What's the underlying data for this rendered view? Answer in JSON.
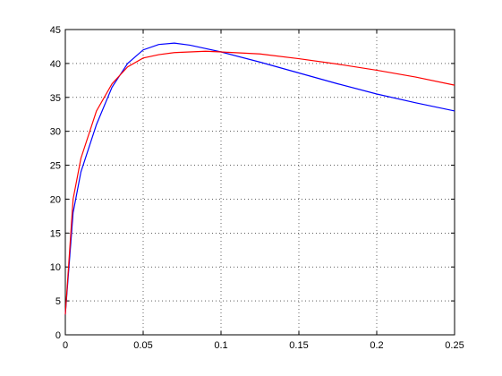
{
  "chart_data": {
    "type": "line",
    "x": [
      0,
      0.005,
      0.01,
      0.02,
      0.03,
      0.04,
      0.05,
      0.06,
      0.07,
      0.08,
      0.09,
      0.1,
      0.125,
      0.15,
      0.175,
      0.2,
      0.225,
      0.25
    ],
    "series": [
      {
        "color": "#0000ff",
        "values": [
          3,
          18,
          24,
          31,
          36.5,
          40,
          42,
          42.8,
          43,
          42.7,
          42.2,
          41.7,
          40.2,
          38.6,
          37,
          35.5,
          34.2,
          33
        ]
      },
      {
        "color": "#ff0000",
        "values": [
          3,
          20,
          26,
          33,
          37,
          39.5,
          40.8,
          41.3,
          41.6,
          41.7,
          41.8,
          41.7,
          41.4,
          40.7,
          39.9,
          39,
          38,
          36.8
        ]
      }
    ],
    "xlim": [
      0,
      0.25
    ],
    "xticks": [
      0,
      0.05,
      0.1,
      0.15,
      0.2,
      0.25
    ],
    "ylim": [
      0,
      45
    ],
    "yticks": [
      0,
      5,
      10,
      15,
      20,
      25,
      30,
      35,
      40,
      45
    ],
    "grid": true
  }
}
